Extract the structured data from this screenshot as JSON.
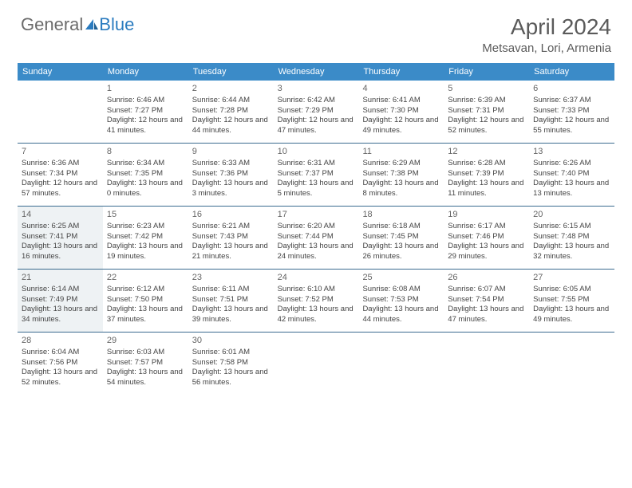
{
  "logo": {
    "text1": "General",
    "text2": "Blue"
  },
  "title": "April 2024",
  "location": "Metsavan, Lori, Armenia",
  "accent_color": "#3b8bc8",
  "divider_color": "#3b6b8f",
  "shaded_bg": "#eef2f4",
  "day_names": [
    "Sunday",
    "Monday",
    "Tuesday",
    "Wednesday",
    "Thursday",
    "Friday",
    "Saturday"
  ],
  "first_weekday": 1,
  "shaded_days": [
    14,
    21
  ],
  "days": [
    {
      "n": 1,
      "sr": "6:46 AM",
      "ss": "7:27 PM",
      "dl": "12 hours and 41 minutes."
    },
    {
      "n": 2,
      "sr": "6:44 AM",
      "ss": "7:28 PM",
      "dl": "12 hours and 44 minutes."
    },
    {
      "n": 3,
      "sr": "6:42 AM",
      "ss": "7:29 PM",
      "dl": "12 hours and 47 minutes."
    },
    {
      "n": 4,
      "sr": "6:41 AM",
      "ss": "7:30 PM",
      "dl": "12 hours and 49 minutes."
    },
    {
      "n": 5,
      "sr": "6:39 AM",
      "ss": "7:31 PM",
      "dl": "12 hours and 52 minutes."
    },
    {
      "n": 6,
      "sr": "6:37 AM",
      "ss": "7:33 PM",
      "dl": "12 hours and 55 minutes."
    },
    {
      "n": 7,
      "sr": "6:36 AM",
      "ss": "7:34 PM",
      "dl": "12 hours and 57 minutes."
    },
    {
      "n": 8,
      "sr": "6:34 AM",
      "ss": "7:35 PM",
      "dl": "13 hours and 0 minutes."
    },
    {
      "n": 9,
      "sr": "6:33 AM",
      "ss": "7:36 PM",
      "dl": "13 hours and 3 minutes."
    },
    {
      "n": 10,
      "sr": "6:31 AM",
      "ss": "7:37 PM",
      "dl": "13 hours and 5 minutes."
    },
    {
      "n": 11,
      "sr": "6:29 AM",
      "ss": "7:38 PM",
      "dl": "13 hours and 8 minutes."
    },
    {
      "n": 12,
      "sr": "6:28 AM",
      "ss": "7:39 PM",
      "dl": "13 hours and 11 minutes."
    },
    {
      "n": 13,
      "sr": "6:26 AM",
      "ss": "7:40 PM",
      "dl": "13 hours and 13 minutes."
    },
    {
      "n": 14,
      "sr": "6:25 AM",
      "ss": "7:41 PM",
      "dl": "13 hours and 16 minutes."
    },
    {
      "n": 15,
      "sr": "6:23 AM",
      "ss": "7:42 PM",
      "dl": "13 hours and 19 minutes."
    },
    {
      "n": 16,
      "sr": "6:21 AM",
      "ss": "7:43 PM",
      "dl": "13 hours and 21 minutes."
    },
    {
      "n": 17,
      "sr": "6:20 AM",
      "ss": "7:44 PM",
      "dl": "13 hours and 24 minutes."
    },
    {
      "n": 18,
      "sr": "6:18 AM",
      "ss": "7:45 PM",
      "dl": "13 hours and 26 minutes."
    },
    {
      "n": 19,
      "sr": "6:17 AM",
      "ss": "7:46 PM",
      "dl": "13 hours and 29 minutes."
    },
    {
      "n": 20,
      "sr": "6:15 AM",
      "ss": "7:48 PM",
      "dl": "13 hours and 32 minutes."
    },
    {
      "n": 21,
      "sr": "6:14 AM",
      "ss": "7:49 PM",
      "dl": "13 hours and 34 minutes."
    },
    {
      "n": 22,
      "sr": "6:12 AM",
      "ss": "7:50 PM",
      "dl": "13 hours and 37 minutes."
    },
    {
      "n": 23,
      "sr": "6:11 AM",
      "ss": "7:51 PM",
      "dl": "13 hours and 39 minutes."
    },
    {
      "n": 24,
      "sr": "6:10 AM",
      "ss": "7:52 PM",
      "dl": "13 hours and 42 minutes."
    },
    {
      "n": 25,
      "sr": "6:08 AM",
      "ss": "7:53 PM",
      "dl": "13 hours and 44 minutes."
    },
    {
      "n": 26,
      "sr": "6:07 AM",
      "ss": "7:54 PM",
      "dl": "13 hours and 47 minutes."
    },
    {
      "n": 27,
      "sr": "6:05 AM",
      "ss": "7:55 PM",
      "dl": "13 hours and 49 minutes."
    },
    {
      "n": 28,
      "sr": "6:04 AM",
      "ss": "7:56 PM",
      "dl": "13 hours and 52 minutes."
    },
    {
      "n": 29,
      "sr": "6:03 AM",
      "ss": "7:57 PM",
      "dl": "13 hours and 54 minutes."
    },
    {
      "n": 30,
      "sr": "6:01 AM",
      "ss": "7:58 PM",
      "dl": "13 hours and 56 minutes."
    }
  ],
  "labels": {
    "sunrise": "Sunrise:",
    "sunset": "Sunset:",
    "daylight": "Daylight:"
  }
}
